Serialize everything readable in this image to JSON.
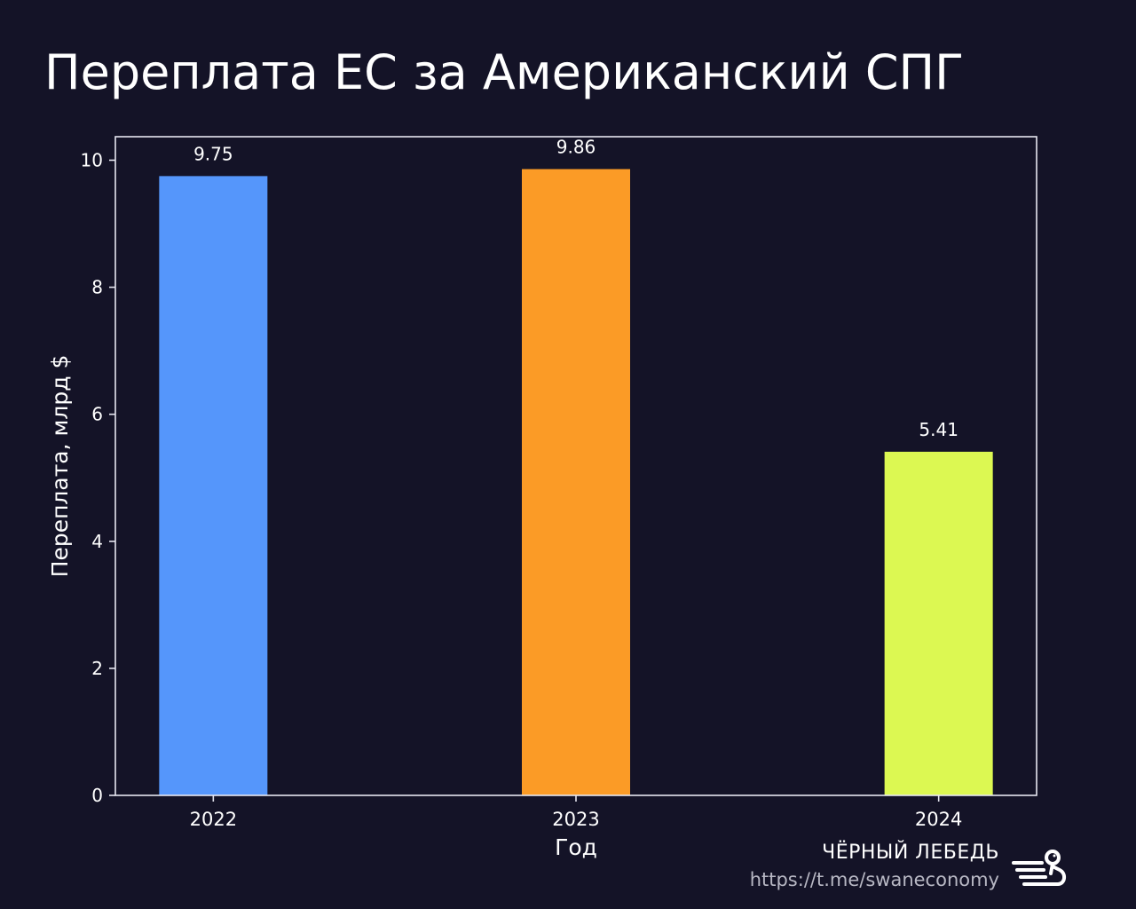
{
  "header": {
    "title": "Переплата ЕС за Американский СПГ"
  },
  "brand": {
    "name": "ЧЁРНЫЙ ЛЕБЕДЬ",
    "url": "https://t.me/swaneconomy",
    "logo_icon": "swan-logo-icon"
  },
  "chart_data": {
    "type": "bar",
    "title": "Переплата ЕС за Американский СПГ",
    "categories": [
      "2022",
      "2023",
      "2024"
    ],
    "values": [
      9.75,
      9.86,
      5.41
    ],
    "value_labels": [
      "9.75",
      "9.86",
      "5.41"
    ],
    "bar_colors": [
      "#5596fb",
      "#fb9b26",
      "#dcf852"
    ],
    "xlabel": "Год",
    "ylabel": "Переплата, млрд $",
    "ylim": [
      0,
      10.37
    ],
    "yticks": [
      0,
      2,
      4,
      6,
      8,
      10
    ],
    "ytick_labels": [
      "0",
      "2",
      "4",
      "6",
      "8",
      "10"
    ],
    "grid": false,
    "legend": "none",
    "colors": {
      "background": "#141327",
      "axes": "#e6e6f0",
      "text": "#ffffff"
    }
  }
}
